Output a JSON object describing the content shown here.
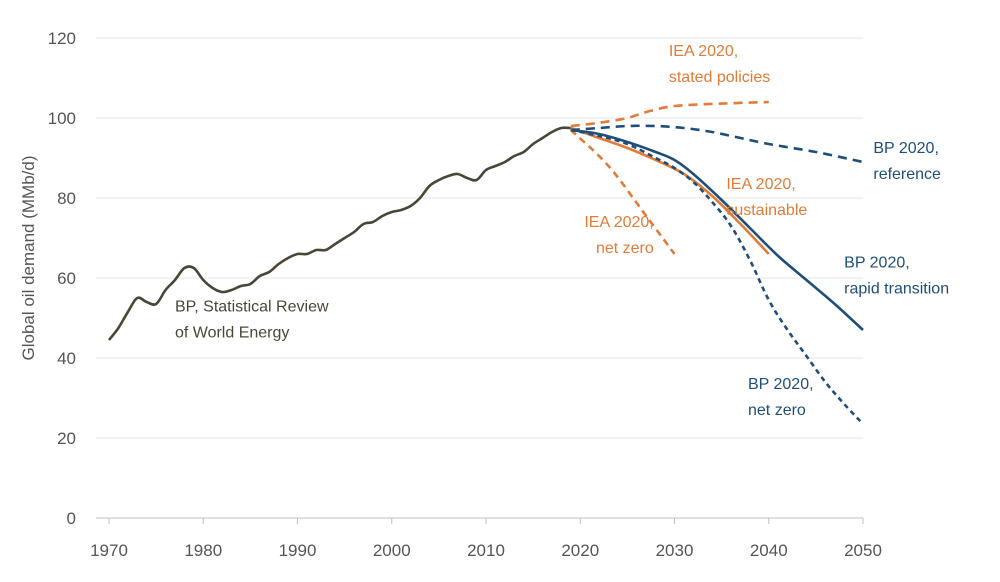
{
  "chart_data": {
    "type": "line",
    "xlabel": "",
    "ylabel": "Global oil demand (MMb/d)",
    "xlim": [
      1970,
      2050
    ],
    "ylim": [
      0,
      120
    ],
    "x_ticks": [
      "1970",
      "1980",
      "1990",
      "2000",
      "2010",
      "2020",
      "2030",
      "2040",
      "2050"
    ],
    "y_ticks": [
      "0",
      "20",
      "40",
      "60",
      "80",
      "100",
      "120"
    ],
    "grid": "horizontal",
    "colors": {
      "history": "#4a4535",
      "iea": "#e07b39",
      "bp": "#1f4e79"
    },
    "series": [
      {
        "name": "BP, Statistical Review of World Energy",
        "color": "history",
        "dash": "solid",
        "x": [
          1970,
          1971,
          1972,
          1973,
          1974,
          1975,
          1976,
          1977,
          1978,
          1979,
          1980,
          1981,
          1982,
          1983,
          1984,
          1985,
          1986,
          1987,
          1988,
          1989,
          1990,
          1991,
          1992,
          1993,
          1994,
          1995,
          1996,
          1997,
          1998,
          1999,
          2000,
          2001,
          2002,
          2003,
          2004,
          2005,
          2006,
          2007,
          2008,
          2009,
          2010,
          2011,
          2012,
          2013,
          2014,
          2015,
          2016,
          2017,
          2018,
          2019
        ],
        "y": [
          44.5,
          47.5,
          51.5,
          55,
          54,
          53.5,
          57,
          59.5,
          62.5,
          62.5,
          59.5,
          57.5,
          56.5,
          57,
          58,
          58.5,
          60.5,
          61.5,
          63.5,
          65,
          66,
          66,
          67,
          67,
          68.5,
          70,
          71.5,
          73.5,
          74,
          75.5,
          76.5,
          77,
          78,
          80,
          83,
          84.5,
          85.5,
          86,
          85,
          84.5,
          87,
          88,
          89,
          90.5,
          91.5,
          93.5,
          95,
          96.5,
          97.5,
          97.5
        ]
      },
      {
        "name": "IEA 2020, stated policies",
        "color": "iea",
        "dash": "long",
        "x": [
          2019,
          2022,
          2025,
          2027,
          2030,
          2035,
          2040
        ],
        "y": [
          98,
          98.8,
          100,
          101.5,
          103,
          103.6,
          104
        ]
      },
      {
        "name": "IEA 2020, sustainable",
        "color": "iea",
        "dash": "solid",
        "x": [
          2019,
          2022,
          2025,
          2028,
          2031,
          2034,
          2037,
          2040
        ],
        "y": [
          97.5,
          95,
          92.5,
          89.5,
          86,
          80.5,
          73.5,
          66
        ]
      },
      {
        "name": "IEA 2020, net zero",
        "color": "iea",
        "dash": "medium",
        "x": [
          2019,
          2023,
          2027,
          2030
        ],
        "y": [
          97,
          88,
          75.5,
          66
        ]
      },
      {
        "name": "BP 2020, reference",
        "color": "bp",
        "dash": "long",
        "x": [
          2019,
          2022,
          2025,
          2028,
          2031,
          2034,
          2037,
          2040,
          2045,
          2050
        ],
        "y": [
          97,
          97.5,
          98,
          98,
          97.5,
          96.5,
          95,
          93.5,
          91.5,
          89
        ]
      },
      {
        "name": "BP 2020, rapid transition",
        "color": "bp",
        "dash": "solid",
        "x": [
          2019,
          2022,
          2025,
          2028,
          2030,
          2032,
          2035,
          2038,
          2041,
          2044,
          2047,
          2050
        ],
        "y": [
          97,
          96,
          94,
          91.5,
          89.5,
          86,
          79.5,
          72.5,
          65.5,
          59.5,
          53.5,
          47
        ]
      },
      {
        "name": "BP 2020, net zero",
        "color": "bp",
        "dash": "short",
        "x": [
          2019,
          2022,
          2025,
          2028,
          2030,
          2032,
          2034,
          2036,
          2038,
          2040,
          2042,
          2044,
          2046,
          2048,
          2050
        ],
        "y": [
          97,
          95.5,
          93.5,
          90,
          87.5,
          84,
          79,
          73,
          64.5,
          54.5,
          47,
          40.5,
          34,
          28.5,
          23.5
        ]
      }
    ],
    "annotations": [
      {
        "lines": [
          "BP, Statistical Review",
          "of World Energy"
        ],
        "color": "history",
        "x": 1977,
        "y": 51.6,
        "anchor": "start"
      },
      {
        "lines": [
          "IEA 2020,",
          "stated policies"
        ],
        "color": "iea",
        "x": 2029.4,
        "y": 115.5,
        "anchor": "start"
      },
      {
        "lines": [
          "IEA 2020,",
          "sustainable"
        ],
        "color": "iea",
        "x": 2035.5,
        "y": 82.3,
        "anchor": "start"
      },
      {
        "lines": [
          "IEA 2020,",
          "net zero"
        ],
        "color": "iea",
        "x": 2027.8,
        "y": 72.8,
        "anchor": "end"
      },
      {
        "lines": [
          "BP 2020,",
          "reference"
        ],
        "color": "bp",
        "x": 2051.1,
        "y": 91.3,
        "anchor": "start"
      },
      {
        "lines": [
          "BP 2020,",
          "rapid transition"
        ],
        "color": "bp",
        "x": 2048.0,
        "y": 62.6,
        "anchor": "start"
      },
      {
        "lines": [
          "BP 2020,",
          "net zero"
        ],
        "color": "bp",
        "x": 2037.8,
        "y": 32.3,
        "anchor": "start"
      }
    ]
  }
}
